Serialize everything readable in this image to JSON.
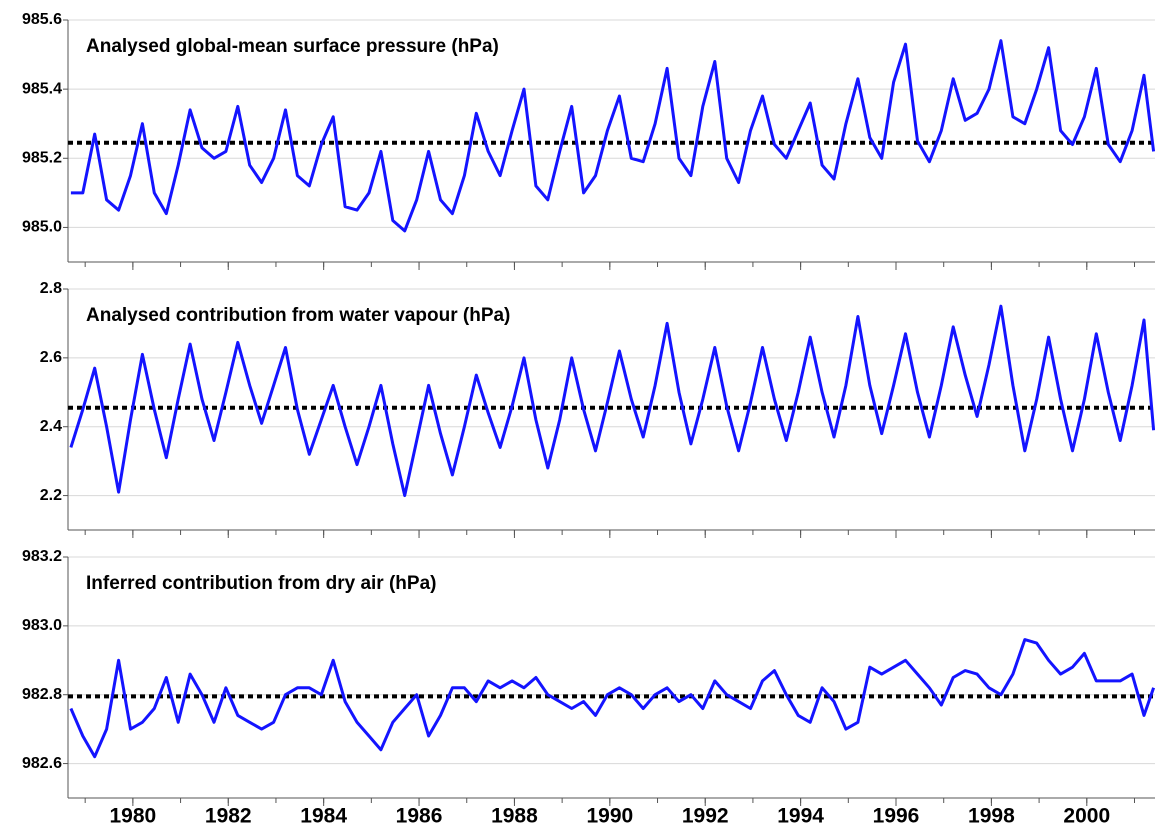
{
  "chart_data": [
    {
      "type": "line",
      "title": "Analysed global-mean surface pressure (hPa)",
      "color": "#1414ff",
      "xlim": [
        1978.64,
        2001.43
      ],
      "xticks": [
        1980,
        1982,
        1984,
        1986,
        1988,
        1990,
        1992,
        1994,
        1996,
        1998,
        2000
      ],
      "ylim": [
        984.9,
        985.6
      ],
      "yticks": [
        {
          "value": 985.0,
          "label": "985.0"
        },
        {
          "value": 985.2,
          "label": "985.2"
        },
        {
          "value": 985.4,
          "label": "985.4"
        },
        {
          "value": 985.6,
          "label": "985.6"
        }
      ],
      "grid": true,
      "reference_line": {
        "value": 985.245,
        "color": "#000000"
      },
      "x": [
        1978.7,
        1978.95,
        1979.2,
        1979.45,
        1979.7,
        1979.95,
        1980.2,
        1980.45,
        1980.7,
        1980.95,
        1981.2,
        1981.45,
        1981.7,
        1981.95,
        1982.2,
        1982.45,
        1982.7,
        1982.95,
        1983.2,
        1983.45,
        1983.7,
        1983.95,
        1984.2,
        1984.45,
        1984.7,
        1984.95,
        1985.2,
        1985.45,
        1985.7,
        1985.95,
        1986.2,
        1986.45,
        1986.7,
        1986.95,
        1987.2,
        1987.45,
        1987.7,
        1987.95,
        1988.2,
        1988.45,
        1988.7,
        1988.95,
        1989.2,
        1989.45,
        1989.7,
        1989.95,
        1990.2,
        1990.45,
        1990.7,
        1990.95,
        1991.2,
        1991.45,
        1991.7,
        1991.95,
        1992.2,
        1992.45,
        1992.7,
        1992.95,
        1993.2,
        1993.45,
        1993.7,
        1993.95,
        1994.2,
        1994.45,
        1994.7,
        1994.95,
        1995.2,
        1995.45,
        1995.7,
        1995.95,
        1996.2,
        1996.45,
        1996.7,
        1996.95,
        1997.2,
        1997.45,
        1997.7,
        1997.95,
        1998.2,
        1998.45,
        1998.7,
        1998.95,
        1999.2,
        1999.45,
        1999.7,
        1999.95,
        2000.2,
        2000.45,
        2000.7,
        2000.95,
        2001.2,
        2001.4
      ],
      "values": [
        985.1,
        985.1,
        985.27,
        985.08,
        985.05,
        985.15,
        985.3,
        985.1,
        985.04,
        985.18,
        985.34,
        985.23,
        985.2,
        985.22,
        985.35,
        985.18,
        985.13,
        985.2,
        985.34,
        985.15,
        985.12,
        985.24,
        985.32,
        985.06,
        985.05,
        985.1,
        985.22,
        985.02,
        984.99,
        985.08,
        985.22,
        985.08,
        985.04,
        985.15,
        985.33,
        985.22,
        985.15,
        985.28,
        985.4,
        985.12,
        985.08,
        985.22,
        985.35,
        985.1,
        985.15,
        985.28,
        985.38,
        985.2,
        985.19,
        985.3,
        985.46,
        985.2,
        985.15,
        985.35,
        985.48,
        985.2,
        985.13,
        985.28,
        985.38,
        985.24,
        985.2,
        985.28,
        985.36,
        985.18,
        985.14,
        985.3,
        985.43,
        985.26,
        985.2,
        985.42,
        985.53,
        985.25,
        985.19,
        985.28,
        985.43,
        985.31,
        985.33,
        985.4,
        985.54,
        985.32,
        985.3,
        985.4,
        985.52,
        985.28,
        985.24,
        985.32,
        985.46,
        985.24,
        985.19,
        985.28,
        985.44,
        985.22
      ]
    },
    {
      "type": "line",
      "title": "Analysed contribution from water vapour (hPa)",
      "color": "#1414ff",
      "xlim": [
        1978.64,
        2001.43
      ],
      "xticks": [
        1980,
        1982,
        1984,
        1986,
        1988,
        1990,
        1992,
        1994,
        1996,
        1998,
        2000
      ],
      "ylim": [
        2.1,
        2.8
      ],
      "yticks": [
        2.2,
        2.4,
        2.6,
        2.8
      ],
      "grid": true,
      "reference_line": {
        "value": 2.455,
        "color": "#000000"
      },
      "x": [
        1978.7,
        1978.95,
        1979.2,
        1979.45,
        1979.7,
        1979.95,
        1980.2,
        1980.45,
        1980.7,
        1980.95,
        1981.2,
        1981.45,
        1981.7,
        1981.95,
        1982.2,
        1982.45,
        1982.7,
        1982.95,
        1983.2,
        1983.45,
        1983.7,
        1983.95,
        1984.2,
        1984.45,
        1984.7,
        1984.95,
        1985.2,
        1985.45,
        1985.7,
        1985.95,
        1986.2,
        1986.45,
        1986.7,
        1986.95,
        1987.2,
        1987.45,
        1987.7,
        1987.95,
        1988.2,
        1988.45,
        1988.7,
        1988.95,
        1989.2,
        1989.45,
        1989.7,
        1989.95,
        1990.2,
        1990.45,
        1990.7,
        1990.95,
        1991.2,
        1991.45,
        1991.7,
        1991.95,
        1992.2,
        1992.45,
        1992.7,
        1992.95,
        1993.2,
        1993.45,
        1993.7,
        1993.95,
        1994.2,
        1994.45,
        1994.7,
        1994.95,
        1995.2,
        1995.45,
        1995.7,
        1995.95,
        1996.2,
        1996.45,
        1996.7,
        1996.95,
        1997.2,
        1997.45,
        1997.7,
        1997.95,
        1998.2,
        1998.45,
        1998.7,
        1998.95,
        1999.2,
        1999.45,
        1999.7,
        1999.95,
        2000.2,
        2000.45,
        2000.7,
        2000.95,
        2001.2,
        2001.4
      ],
      "values": [
        2.34,
        2.45,
        2.57,
        2.4,
        2.21,
        2.42,
        2.61,
        2.45,
        2.31,
        2.48,
        2.64,
        2.48,
        2.36,
        2.5,
        2.645,
        2.52,
        2.41,
        2.52,
        2.63,
        2.45,
        2.32,
        2.42,
        2.52,
        2.4,
        2.29,
        2.4,
        2.52,
        2.35,
        2.2,
        2.36,
        2.52,
        2.38,
        2.26,
        2.4,
        2.55,
        2.44,
        2.34,
        2.46,
        2.6,
        2.42,
        2.28,
        2.42,
        2.6,
        2.45,
        2.33,
        2.47,
        2.62,
        2.48,
        2.37,
        2.52,
        2.7,
        2.5,
        2.35,
        2.48,
        2.63,
        2.46,
        2.33,
        2.47,
        2.63,
        2.48,
        2.36,
        2.5,
        2.66,
        2.5,
        2.37,
        2.52,
        2.72,
        2.52,
        2.38,
        2.52,
        2.67,
        2.5,
        2.37,
        2.52,
        2.69,
        2.55,
        2.43,
        2.58,
        2.75,
        2.52,
        2.33,
        2.48,
        2.66,
        2.48,
        2.33,
        2.48,
        2.67,
        2.5,
        2.36,
        2.52,
        2.71,
        2.39
      ]
    },
    {
      "type": "line",
      "title": "Inferred contribution from dry air (hPa)",
      "color": "#1414ff",
      "xlim": [
        1978.64,
        2001.43
      ],
      "xticks": [
        1980,
        1982,
        1984,
        1986,
        1988,
        1990,
        1992,
        1994,
        1996,
        1998,
        2000
      ],
      "ylim": [
        982.5,
        983.2
      ],
      "yticks": [
        982.6,
        982.8,
        {
          "value": 983.0,
          "label": "983.0"
        },
        983.2
      ],
      "grid": true,
      "reference_line": {
        "value": 982.795,
        "color": "#000000"
      },
      "x": [
        1978.7,
        1978.95,
        1979.2,
        1979.45,
        1979.7,
        1979.95,
        1980.2,
        1980.45,
        1980.7,
        1980.95,
        1981.2,
        1981.45,
        1981.7,
        1981.95,
        1982.2,
        1982.45,
        1982.7,
        1982.95,
        1983.2,
        1983.45,
        1983.7,
        1983.95,
        1984.2,
        1984.45,
        1984.7,
        1984.95,
        1985.2,
        1985.45,
        1985.7,
        1985.95,
        1986.2,
        1986.45,
        1986.7,
        1986.95,
        1987.2,
        1987.45,
        1987.7,
        1987.95,
        1988.2,
        1988.45,
        1988.7,
        1988.95,
        1989.2,
        1989.45,
        1989.7,
        1989.95,
        1990.2,
        1990.45,
        1990.7,
        1990.95,
        1991.2,
        1991.45,
        1991.7,
        1991.95,
        1992.2,
        1992.45,
        1992.7,
        1992.95,
        1993.2,
        1993.45,
        1993.7,
        1993.95,
        1994.2,
        1994.45,
        1994.7,
        1994.95,
        1995.2,
        1995.45,
        1995.7,
        1995.95,
        1996.2,
        1996.45,
        1996.7,
        1996.95,
        1997.2,
        1997.45,
        1997.7,
        1997.95,
        1998.2,
        1998.45,
        1998.7,
        1998.95,
        1999.2,
        1999.45,
        1999.7,
        1999.95,
        2000.2,
        2000.45,
        2000.7,
        2000.95,
        2001.2,
        2001.4
      ],
      "values": [
        982.76,
        982.68,
        982.62,
        982.7,
        982.9,
        982.7,
        982.72,
        982.76,
        982.85,
        982.72,
        982.86,
        982.8,
        982.72,
        982.82,
        982.74,
        982.72,
        982.7,
        982.72,
        982.8,
        982.82,
        982.82,
        982.8,
        982.9,
        982.78,
        982.72,
        982.68,
        982.64,
        982.72,
        982.76,
        982.8,
        982.68,
        982.74,
        982.82,
        982.82,
        982.78,
        982.84,
        982.82,
        982.84,
        982.82,
        982.85,
        982.8,
        982.78,
        982.76,
        982.78,
        982.74,
        982.8,
        982.82,
        982.8,
        982.76,
        982.8,
        982.82,
        982.78,
        982.8,
        982.76,
        982.84,
        982.8,
        982.78,
        982.76,
        982.84,
        982.87,
        982.8,
        982.74,
        982.72,
        982.82,
        982.78,
        982.7,
        982.72,
        982.88,
        982.86,
        982.88,
        982.9,
        982.86,
        982.82,
        982.77,
        982.85,
        982.87,
        982.86,
        982.82,
        982.8,
        982.86,
        982.96,
        982.95,
        982.9,
        982.86,
        982.88,
        982.92,
        982.84,
        982.84,
        982.84,
        982.86,
        982.74,
        982.82
      ]
    }
  ]
}
